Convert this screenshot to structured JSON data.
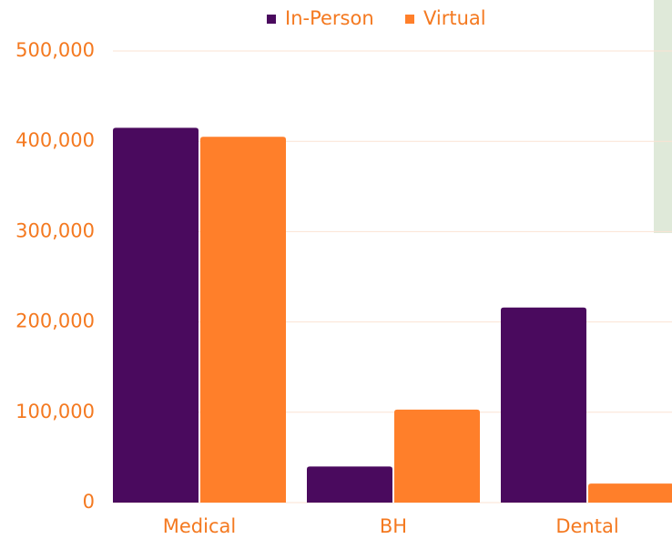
{
  "chart_data": {
    "type": "bar",
    "categories": [
      "Medical",
      "BH",
      "Dental"
    ],
    "series": [
      {
        "name": "In-Person",
        "color": "#4a0a5e",
        "values": [
          415000,
          40000,
          216000
        ]
      },
      {
        "name": "Virtual",
        "color": "#ff7f2a",
        "values": [
          405000,
          103000,
          21000
        ]
      }
    ],
    "ylim": [
      0,
      500000
    ],
    "yticks": [
      0,
      {
        "value": 100000,
        "label": "100,000"
      },
      {
        "value": 200000,
        "label": "200,000"
      },
      {
        "value": 300000,
        "label": "300,000"
      },
      {
        "value": 400000,
        "label": "400,000"
      },
      {
        "value": 500000,
        "label": "500,000"
      }
    ],
    "grid": true,
    "legend": "top"
  }
}
